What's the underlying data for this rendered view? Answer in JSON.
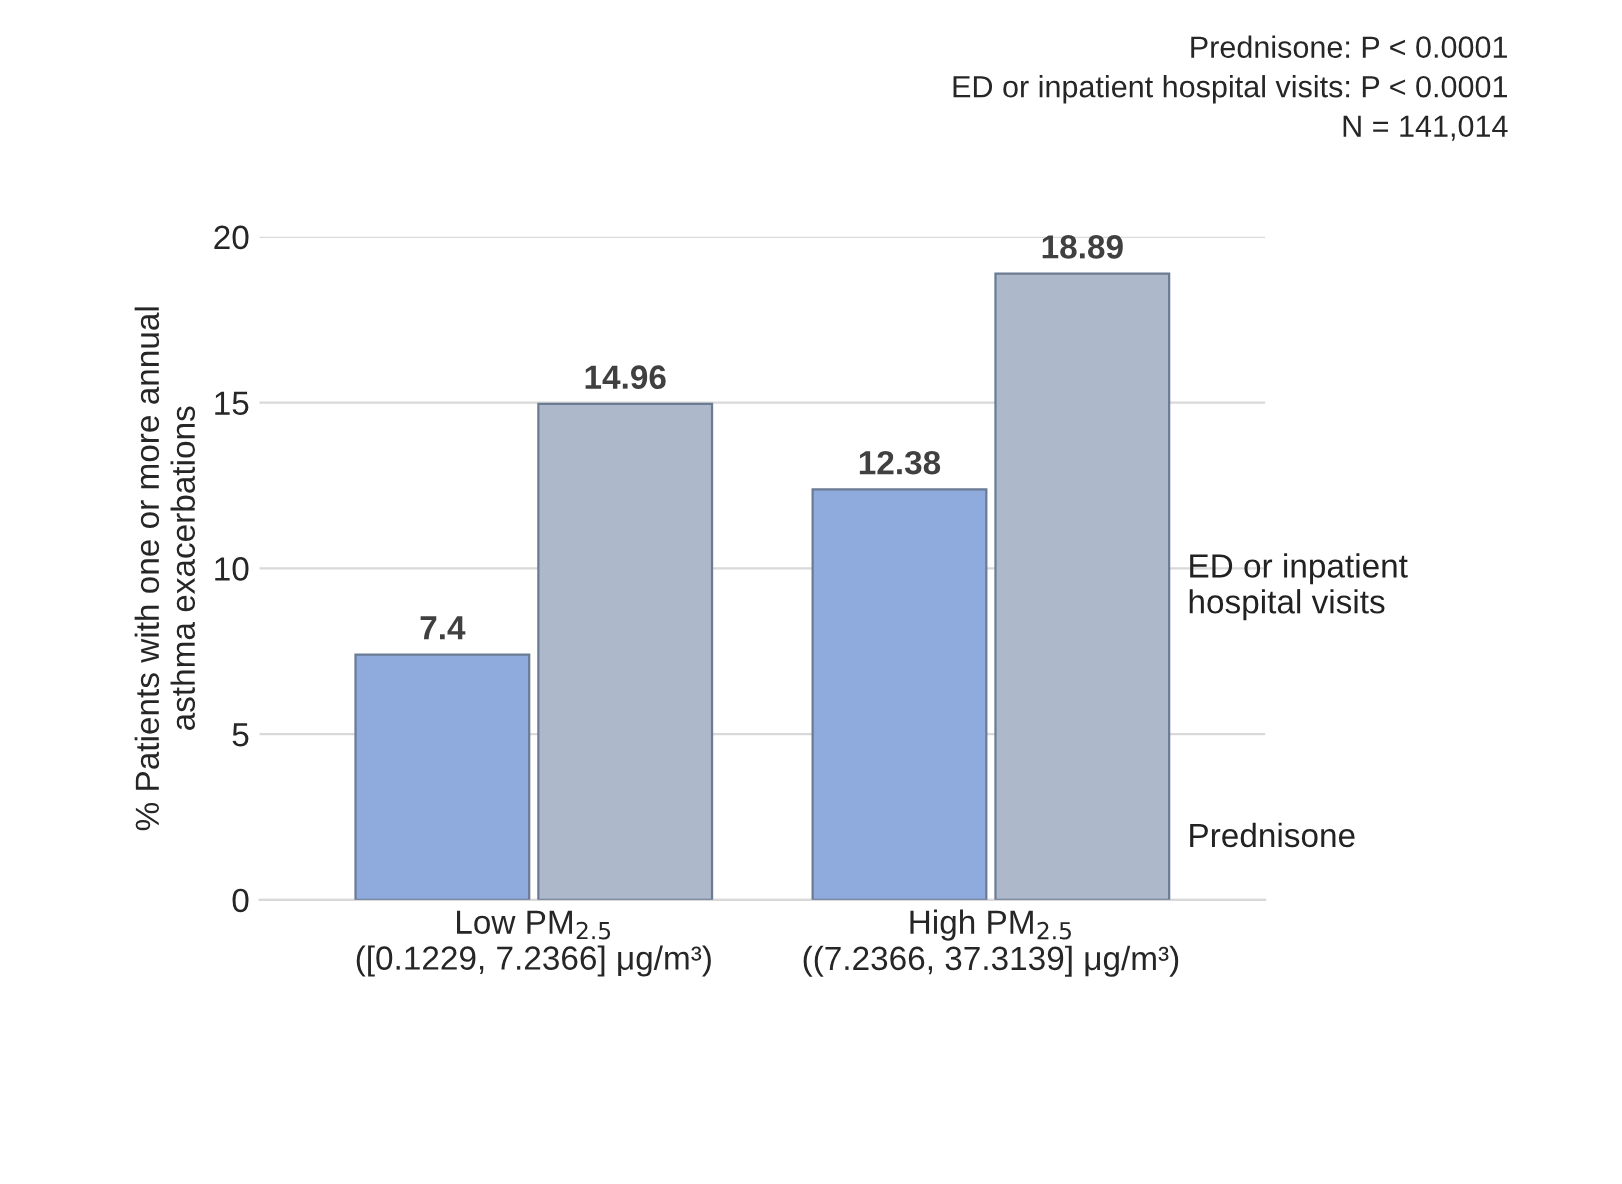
{
  "chart_data": {
    "type": "bar",
    "categories": [
      "Low PM$_{2.5}$\n([0.1229, 7.2366] μg/m³)",
      "High PM$_{2.5}$\n((7.2366, 37.3139] μg/m³)"
    ],
    "series": [
      {
        "name": "Prednisone",
        "color": "#8faadc",
        "values": [
          7.4,
          12.38
        ]
      },
      {
        "name": "ED or inpatient\nhospital visits",
        "color": "#adb9ca",
        "values": [
          14.96,
          18.89
        ]
      }
    ],
    "ylabel": "% Patients with one or more annual\nasthma exacerbations",
    "ylim": [
      0,
      20
    ],
    "yticks": [
      0,
      5,
      10,
      15,
      20
    ],
    "grid": "y",
    "data_labels": true,
    "legend": false,
    "annotations": [
      "Prednisone: P < 0.0001\nED or inpatient hospital visits: P < 0.0001\nN = 141,014"
    ]
  }
}
